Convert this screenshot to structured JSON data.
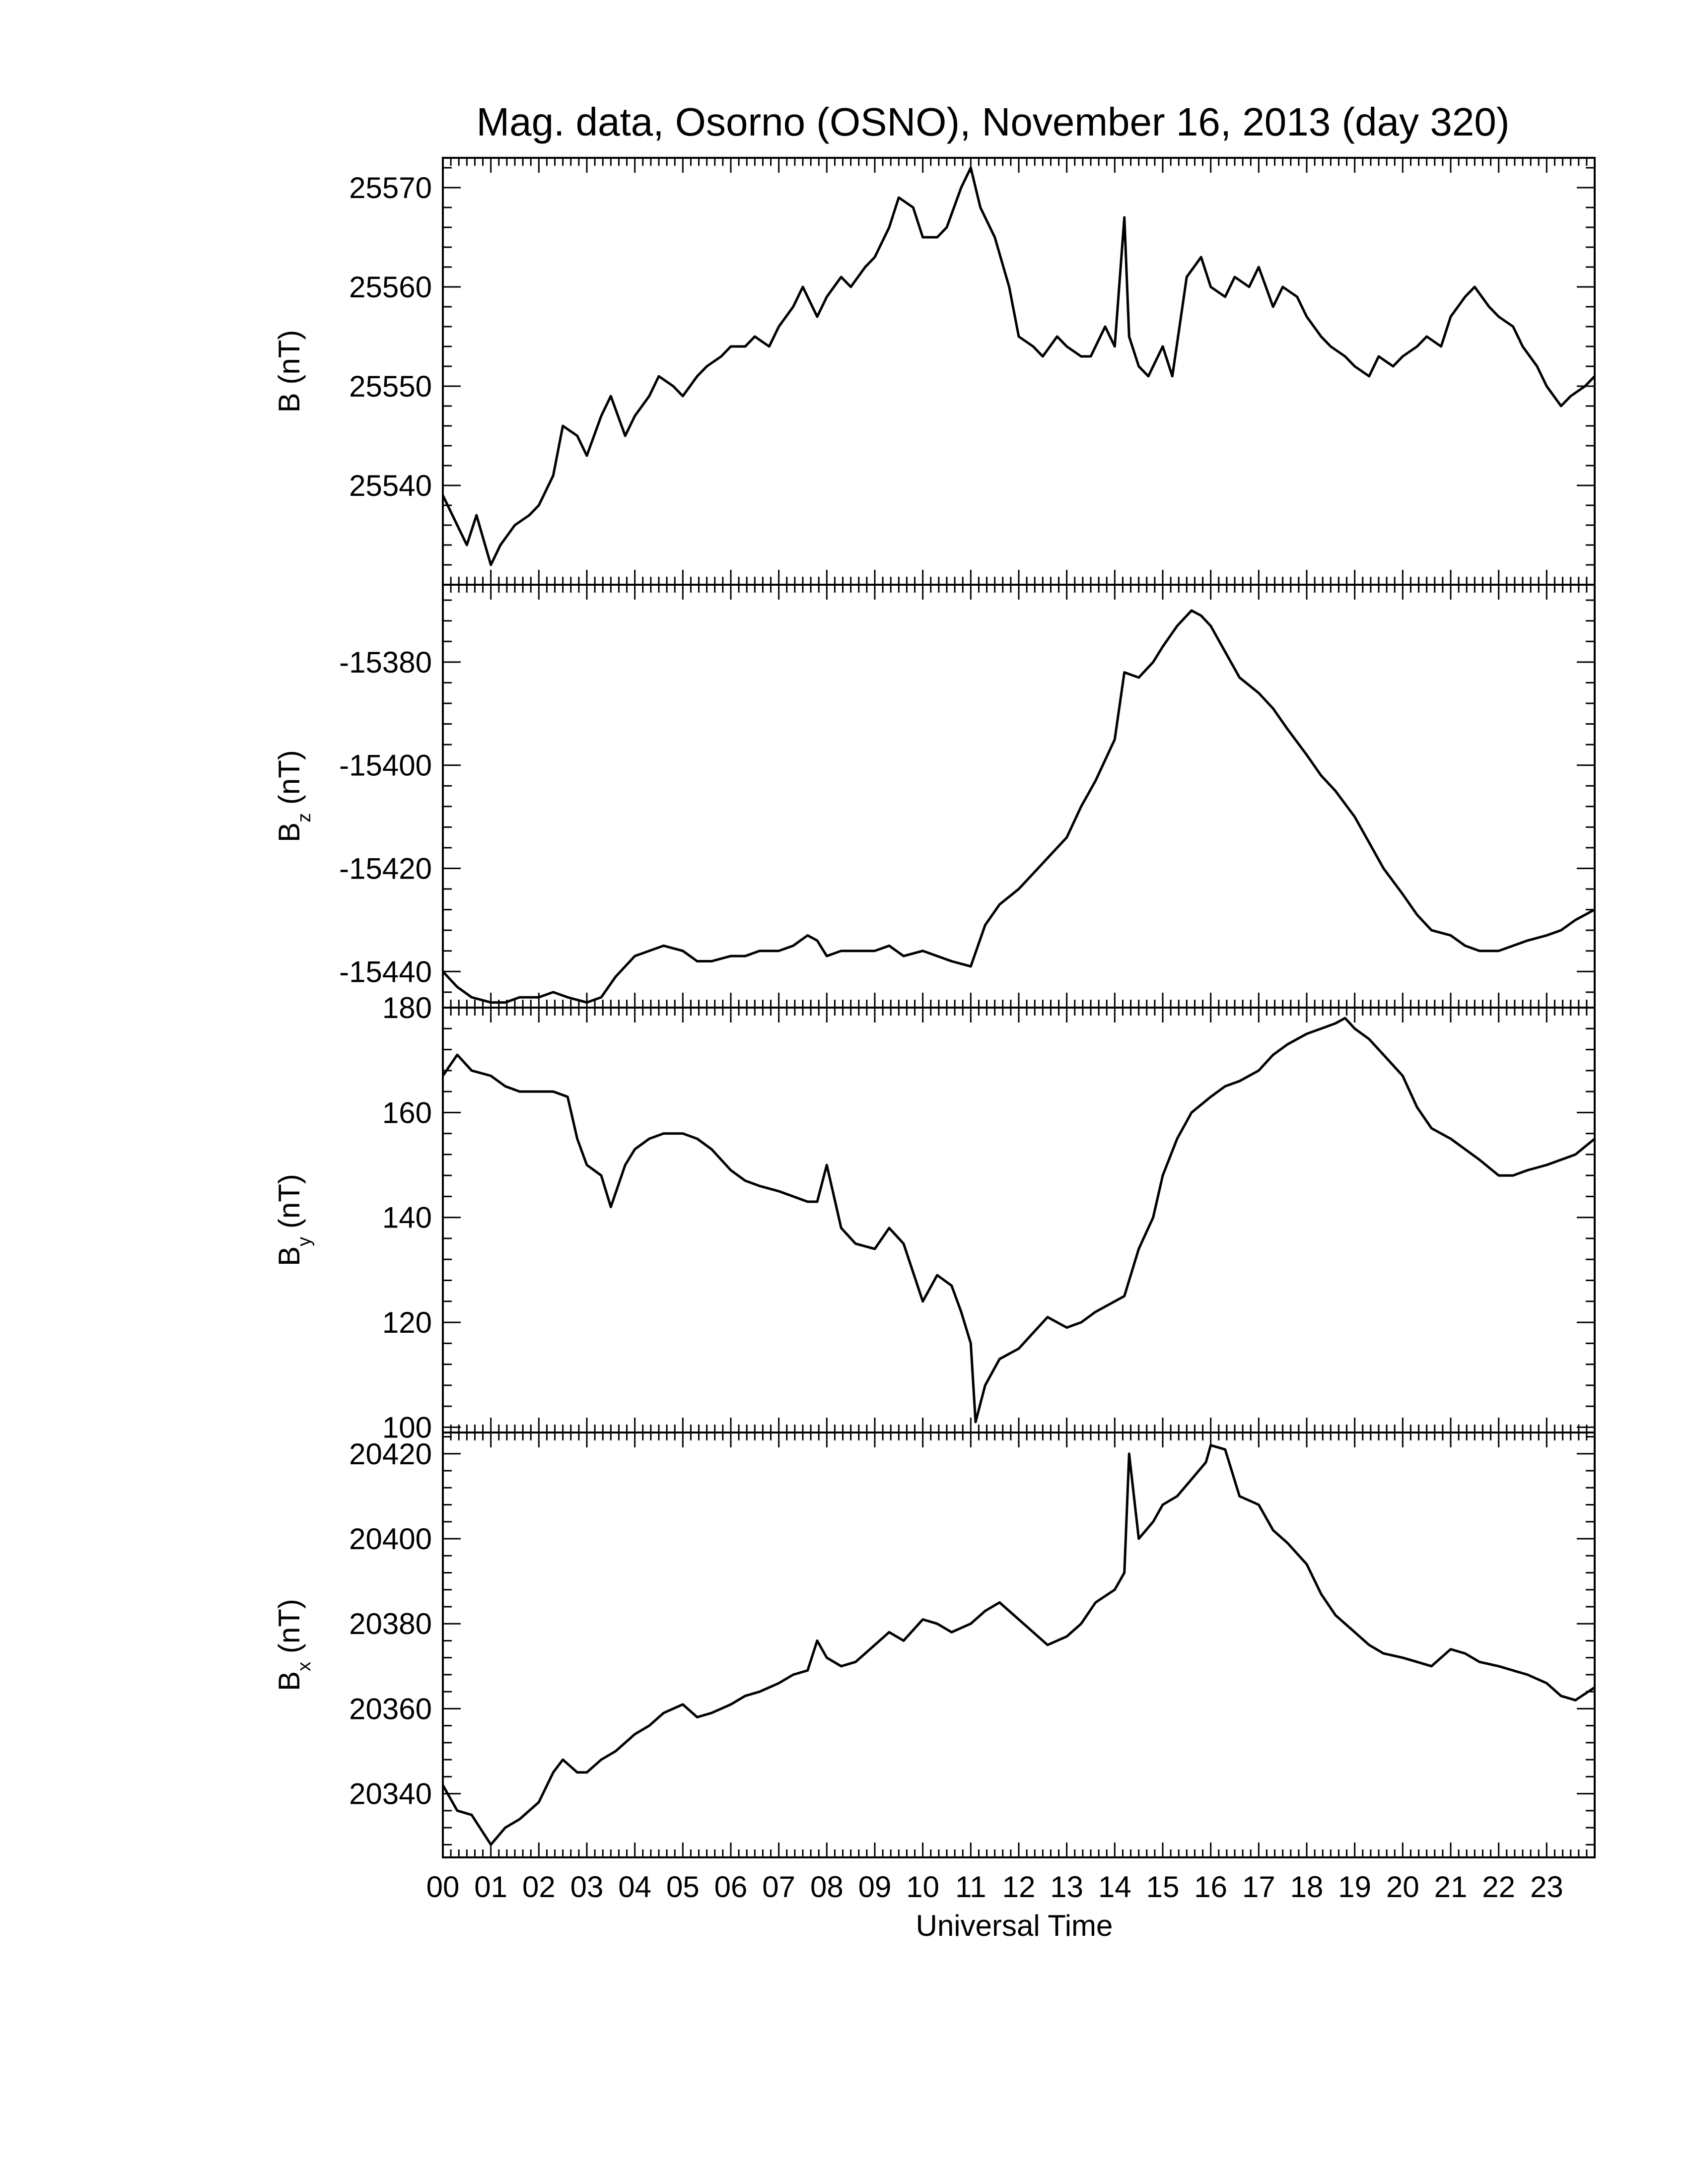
{
  "chart_data": {
    "type": "line",
    "title": "Mag. data, Osorno (OSNO), November 16, 2013 (day 320)",
    "xlabel": "Universal Time",
    "x_ticks": [
      "00",
      "01",
      "02",
      "03",
      "04",
      "05",
      "06",
      "07",
      "08",
      "09",
      "10",
      "11",
      "12",
      "13",
      "14",
      "15",
      "16",
      "17",
      "18",
      "19",
      "20",
      "21",
      "22",
      "23"
    ],
    "xlim": [
      0,
      24
    ],
    "panels": [
      {
        "ylabel_main": "B",
        "ylabel_sub": "",
        "ylabel_unit": " (nT)",
        "ylim": [
          25530,
          25573
        ],
        "yticks": [
          25540,
          25550,
          25560,
          25570
        ],
        "ytick_labels": [
          "25540",
          "25550",
          "25560",
          "25570"
        ],
        "series": [
          {
            "x": [
              0,
              0.3,
              0.5,
              0.7,
              1.0,
              1.2,
              1.5,
              1.8,
              2.0,
              2.3,
              2.5,
              2.8,
              3.0,
              3.3,
              3.5,
              3.8,
              4.0,
              4.3,
              4.5,
              4.8,
              5.0,
              5.3,
              5.5,
              5.8,
              6.0,
              6.3,
              6.5,
              6.8,
              7.0,
              7.3,
              7.5,
              7.8,
              8.0,
              8.3,
              8.5,
              8.8,
              9.0,
              9.3,
              9.5,
              9.8,
              10.0,
              10.3,
              10.5,
              10.8,
              11.0,
              11.2,
              11.5,
              11.8,
              12.0,
              12.3,
              12.5,
              12.8,
              13.0,
              13.3,
              13.5,
              13.8,
              14.0,
              14.2,
              14.3,
              14.5,
              14.7,
              15.0,
              15.2,
              15.5,
              15.8,
              16.0,
              16.3,
              16.5,
              16.8,
              17.0,
              17.3,
              17.5,
              17.8,
              18.0,
              18.3,
              18.5,
              18.8,
              19.0,
              19.3,
              19.5,
              19.8,
              20.0,
              20.3,
              20.5,
              20.8,
              21.0,
              21.3,
              21.5,
              21.8,
              22.0,
              22.3,
              22.5,
              22.8,
              23.0,
              23.3,
              23.5,
              23.8,
              24.0
            ],
            "y": [
              25539,
              25536,
              25534,
              25537,
              25532,
              25534,
              25536,
              25537,
              25538,
              25541,
              25546,
              25545,
              25543,
              25547,
              25549,
              25545,
              25547,
              25549,
              25551,
              25550,
              25549,
              25551,
              25552,
              25553,
              25554,
              25554,
              25555,
              25554,
              25556,
              25558,
              25560,
              25557,
              25559,
              25561,
              25560,
              25562,
              25563,
              25566,
              25569,
              25568,
              25565,
              25565,
              25566,
              25570,
              25572,
              25568,
              25565,
              25560,
              25555,
              25554,
              25553,
              25555,
              25554,
              25553,
              25553,
              25556,
              25554,
              25567,
              25555,
              25552,
              25551,
              25554,
              25551,
              25561,
              25563,
              25560,
              25559,
              25561,
              25560,
              25562,
              25558,
              25560,
              25559,
              25557,
              25555,
              25554,
              25553,
              25552,
              25551,
              25553,
              25552,
              25553,
              25554,
              25555,
              25554,
              25557,
              25559,
              25560,
              25558,
              25557,
              25556,
              25554,
              25552,
              25550,
              25548,
              25549,
              25550,
              25551
            ]
          }
        ]
      },
      {
        "ylabel_main": "B",
        "ylabel_sub": "z",
        "ylabel_unit": " (nT)",
        "ylim": [
          -15447,
          -15365
        ],
        "yticks": [
          -15440,
          -15420,
          -15400,
          -15380
        ],
        "ytick_labels": [
          "-15440",
          "-15420",
          "-15400",
          "-15380"
        ],
        "series": [
          {
            "x": [
              0,
              0.3,
              0.6,
              1.0,
              1.3,
              1.6,
              2.0,
              2.3,
              2.6,
              3.0,
              3.3,
              3.6,
              4.0,
              4.3,
              4.6,
              5.0,
              5.3,
              5.6,
              6.0,
              6.3,
              6.6,
              7.0,
              7.3,
              7.6,
              7.8,
              8.0,
              8.3,
              8.6,
              9.0,
              9.3,
              9.6,
              10.0,
              10.3,
              10.6,
              11.0,
              11.3,
              11.6,
              12.0,
              12.3,
              12.6,
              13.0,
              13.3,
              13.6,
              14.0,
              14.2,
              14.5,
              14.8,
              15.0,
              15.3,
              15.6,
              15.8,
              16.0,
              16.3,
              16.6,
              17.0,
              17.3,
              17.6,
              18.0,
              18.3,
              18.6,
              19.0,
              19.3,
              19.6,
              20.0,
              20.3,
              20.6,
              21.0,
              21.3,
              21.6,
              22.0,
              22.3,
              22.6,
              23.0,
              23.3,
              23.6,
              24.0
            ],
            "y": [
              -15440,
              -15443,
              -15445,
              -15446,
              -15446,
              -15445,
              -15445,
              -15444,
              -15445,
              -15446,
              -15445,
              -15441,
              -15437,
              -15436,
              -15435,
              -15436,
              -15438,
              -15438,
              -15437,
              -15437,
              -15436,
              -15436,
              -15435,
              -15433,
              -15434,
              -15437,
              -15436,
              -15436,
              -15436,
              -15435,
              -15437,
              -15436,
              -15437,
              -15438,
              -15439,
              -15431,
              -15427,
              -15424,
              -15421,
              -15418,
              -15414,
              -15408,
              -15403,
              -15395,
              -15382,
              -15383,
              -15380,
              -15377,
              -15373,
              -15370,
              -15371,
              -15373,
              -15378,
              -15383,
              -15386,
              -15389,
              -15393,
              -15398,
              -15402,
              -15405,
              -15410,
              -15415,
              -15420,
              -15425,
              -15429,
              -15432,
              -15433,
              -15435,
              -15436,
              -15436,
              -15435,
              -15434,
              -15433,
              -15432,
              -15430,
              -15428
            ]
          }
        ]
      },
      {
        "ylabel_main": "B",
        "ylabel_sub": "y",
        "ylabel_unit": " (nT)",
        "ylim": [
          99,
          180
        ],
        "yticks": [
          100,
          120,
          140,
          160,
          180
        ],
        "ytick_labels": [
          "100",
          "120",
          "140",
          "160",
          "180"
        ],
        "series": [
          {
            "x": [
              0,
              0.3,
              0.6,
              1.0,
              1.3,
              1.6,
              2.0,
              2.3,
              2.6,
              2.8,
              3.0,
              3.3,
              3.5,
              3.8,
              4.0,
              4.3,
              4.6,
              5.0,
              5.3,
              5.6,
              6.0,
              6.3,
              6.6,
              7.0,
              7.3,
              7.6,
              7.8,
              8.0,
              8.3,
              8.6,
              9.0,
              9.3,
              9.6,
              10.0,
              10.3,
              10.6,
              10.8,
              11.0,
              11.1,
              11.3,
              11.6,
              12.0,
              12.3,
              12.6,
              13.0,
              13.3,
              13.6,
              14.0,
              14.2,
              14.5,
              14.8,
              15.0,
              15.3,
              15.6,
              16.0,
              16.3,
              16.6,
              17.0,
              17.3,
              17.6,
              18.0,
              18.3,
              18.6,
              18.8,
              19.0,
              19.3,
              19.6,
              20.0,
              20.3,
              20.6,
              21.0,
              21.3,
              21.6,
              22.0,
              22.3,
              22.6,
              23.0,
              23.3,
              23.6,
              24.0
            ],
            "y": [
              167,
              171,
              168,
              167,
              165,
              164,
              164,
              164,
              163,
              155,
              150,
              148,
              142,
              150,
              153,
              155,
              156,
              156,
              155,
              153,
              149,
              147,
              146,
              145,
              144,
              143,
              143,
              150,
              138,
              135,
              134,
              138,
              135,
              124,
              129,
              127,
              122,
              116,
              101,
              108,
              113,
              115,
              118,
              121,
              119,
              120,
              122,
              124,
              125,
              134,
              140,
              148,
              155,
              160,
              163,
              165,
              166,
              168,
              171,
              173,
              175,
              176,
              177,
              178,
              176,
              174,
              171,
              167,
              161,
              157,
              155,
              153,
              151,
              148,
              148,
              149,
              150,
              151,
              152,
              155
            ]
          }
        ]
      },
      {
        "ylabel_main": "B",
        "ylabel_sub": "x",
        "ylabel_unit": " (nT)",
        "ylim": [
          20325,
          20425
        ],
        "yticks": [
          20340,
          20360,
          20380,
          20400,
          20420
        ],
        "ytick_labels": [
          "20340",
          "20360",
          "20380",
          "20400",
          "20420"
        ],
        "series": [
          {
            "x": [
              0,
              0.3,
              0.6,
              1.0,
              1.3,
              1.6,
              2.0,
              2.3,
              2.5,
              2.8,
              3.0,
              3.3,
              3.6,
              4.0,
              4.3,
              4.6,
              5.0,
              5.3,
              5.6,
              6.0,
              6.3,
              6.6,
              7.0,
              7.3,
              7.6,
              7.8,
              8.0,
              8.3,
              8.6,
              9.0,
              9.3,
              9.6,
              10.0,
              10.3,
              10.6,
              11.0,
              11.3,
              11.6,
              12.0,
              12.3,
              12.6,
              13.0,
              13.3,
              13.6,
              14.0,
              14.2,
              14.3,
              14.5,
              14.8,
              15.0,
              15.3,
              15.6,
              15.9,
              16.0,
              16.3,
              16.6,
              17.0,
              17.3,
              17.6,
              18.0,
              18.3,
              18.6,
              19.0,
              19.3,
              19.6,
              20.0,
              20.3,
              20.6,
              21.0,
              21.3,
              21.6,
              22.0,
              22.3,
              22.6,
              23.0,
              23.3,
              23.6,
              24.0
            ],
            "y": [
              20342,
              20336,
              20335,
              20328,
              20332,
              20334,
              20338,
              20345,
              20348,
              20345,
              20345,
              20348,
              20350,
              20354,
              20356,
              20359,
              20361,
              20358,
              20359,
              20361,
              20363,
              20364,
              20366,
              20368,
              20369,
              20376,
              20372,
              20370,
              20371,
              20375,
              20378,
              20376,
              20381,
              20380,
              20378,
              20380,
              20383,
              20385,
              20381,
              20378,
              20375,
              20377,
              20380,
              20385,
              20388,
              20392,
              20420,
              20400,
              20404,
              20408,
              20410,
              20414,
              20418,
              20422,
              20421,
              20410,
              20408,
              20402,
              20399,
              20394,
              20387,
              20382,
              20378,
              20375,
              20373,
              20372,
              20371,
              20370,
              20374,
              20373,
              20371,
              20370,
              20369,
              20368,
              20366,
              20363,
              20362,
              20365
            ]
          }
        ]
      }
    ]
  }
}
